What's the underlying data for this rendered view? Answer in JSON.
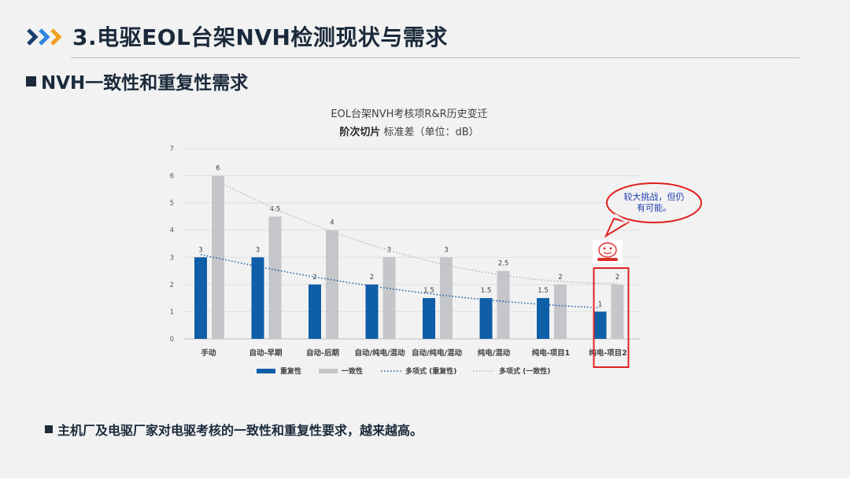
{
  "header": {
    "title": "3.电驱EOL台架NVH检测现状与需求",
    "subtitle": "NVH一致性和重复性需求"
  },
  "chart_title": {
    "line1": "EOL台架NVH考核项R&R历史变迁",
    "line2_bold": "阶次切片",
    "line2_rest": " 标准差（单位：dB）"
  },
  "callout": {
    "text": "较大挑战，但仍有可能。"
  },
  "footer": {
    "text": "主机厂及电驱厂家对电驱考核的一致性和重复性要求，越来越高。"
  },
  "colors": {
    "repeat": "#0f5ea8",
    "consist": "#c4c6ca",
    "highlight": "#e02020",
    "accent": "#2e86de"
  },
  "chart_data": {
    "type": "bar",
    "title": "EOL台架NVH考核项R&R历史变迁 阶次切片 标准差（单位：dB）",
    "categories": [
      "手动",
      "自动-早期",
      "自动-后期",
      "自动/纯电/混动",
      "自动/纯电/混动",
      "纯电/混动",
      "纯电-项目1",
      "纯电-项目2"
    ],
    "series": [
      {
        "name": "重复性",
        "values": [
          3,
          3,
          2,
          2,
          1.5,
          1.5,
          1.5,
          1
        ]
      },
      {
        "name": "一致性",
        "values": [
          6,
          4.5,
          4,
          3,
          3,
          2.5,
          2,
          2
        ]
      }
    ],
    "trendlines": [
      {
        "name": "多项式 (重复性)",
        "series": "重复性",
        "style": "dotted"
      },
      {
        "name": "多项式 (一致性)",
        "series": "一致性",
        "style": "dotted"
      }
    ],
    "yticks": [
      "0",
      "1",
      "2",
      "3",
      "4",
      "5",
      "6",
      "7"
    ],
    "ylim": [
      0,
      7
    ],
    "grid": true,
    "legend_position": "bottom",
    "highlighted_category": "纯电-项目2"
  }
}
